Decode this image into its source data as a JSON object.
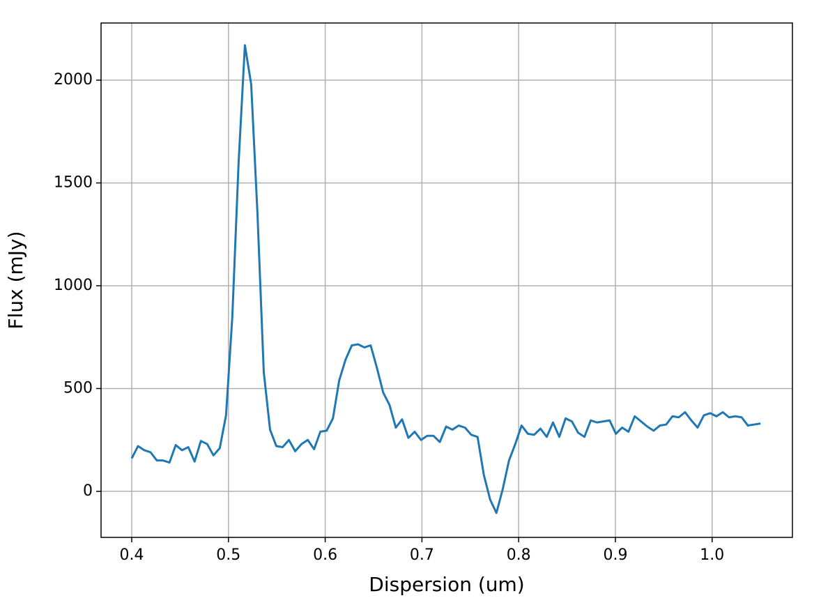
{
  "chart_data": {
    "type": "line",
    "x_label": "Dispersion (um)",
    "y_label": "Flux (mJy)",
    "x": [
      0.4,
      0.4065,
      0.413,
      0.4195,
      0.426,
      0.4325,
      0.439,
      0.4455,
      0.452,
      0.4585,
      0.465,
      0.4715,
      0.478,
      0.4845,
      0.491,
      0.4975,
      0.504,
      0.5105,
      0.517,
      0.5235,
      0.53,
      0.5365,
      0.543,
      0.5495,
      0.556,
      0.5625,
      0.569,
      0.5755,
      0.582,
      0.5885,
      0.595,
      0.6015,
      0.608,
      0.6145,
      0.621,
      0.6275,
      0.634,
      0.6405,
      0.647,
      0.6535,
      0.66,
      0.6665,
      0.673,
      0.6795,
      0.686,
      0.6925,
      0.699,
      0.7055,
      0.712,
      0.7185,
      0.725,
      0.7315,
      0.738,
      0.7445,
      0.751,
      0.7575,
      0.764,
      0.7705,
      0.777,
      0.7835,
      0.79,
      0.7965,
      0.803,
      0.8095,
      0.816,
      0.8225,
      0.829,
      0.8355,
      0.842,
      0.8485,
      0.855,
      0.8615,
      0.868,
      0.8745,
      0.881,
      0.8875,
      0.894,
      0.9005,
      0.907,
      0.9135,
      0.92,
      0.9265,
      0.933,
      0.9395,
      0.946,
      0.9525,
      0.959,
      0.9655,
      0.972,
      0.9785,
      0.985,
      0.9915,
      0.998,
      1.0045,
      1.011,
      1.0175,
      1.024,
      1.0305,
      1.037,
      1.0435,
      1.05
    ],
    "series": [
      {
        "color": "#1f77b4",
        "values": [
          160,
          220,
          200,
          190,
          150,
          150,
          140,
          225,
          200,
          215,
          145,
          245,
          230,
          175,
          210,
          370,
          850,
          1600,
          2170,
          1980,
          1350,
          580,
          300,
          220,
          215,
          250,
          195,
          230,
          250,
          205,
          290,
          295,
          355,
          540,
          640,
          710,
          715,
          700,
          710,
          600,
          480,
          420,
          310,
          350,
          260,
          290,
          250,
          270,
          270,
          240,
          315,
          300,
          320,
          310,
          275,
          265,
          80,
          -40,
          -105,
          10,
          150,
          230,
          320,
          280,
          275,
          305,
          265,
          335,
          265,
          355,
          340,
          285,
          265,
          345,
          335,
          340,
          345,
          280,
          310,
          290,
          365,
          340,
          315,
          295,
          320,
          325,
          365,
          360,
          385,
          345,
          310,
          370,
          380,
          365,
          385,
          360,
          365,
          360,
          320,
          325,
          330
        ]
      }
    ],
    "xlim": [
      0.3683,
      1.083
    ],
    "ylim": [
      -224,
      2278
    ],
    "xticks": [
      0.4,
      0.5,
      0.6,
      0.7,
      0.8,
      0.9,
      {
        "value": 1,
        "label": "1.0"
      }
    ],
    "yticks": [
      0,
      500,
      1000,
      1500,
      2000
    ],
    "grid": true
  }
}
